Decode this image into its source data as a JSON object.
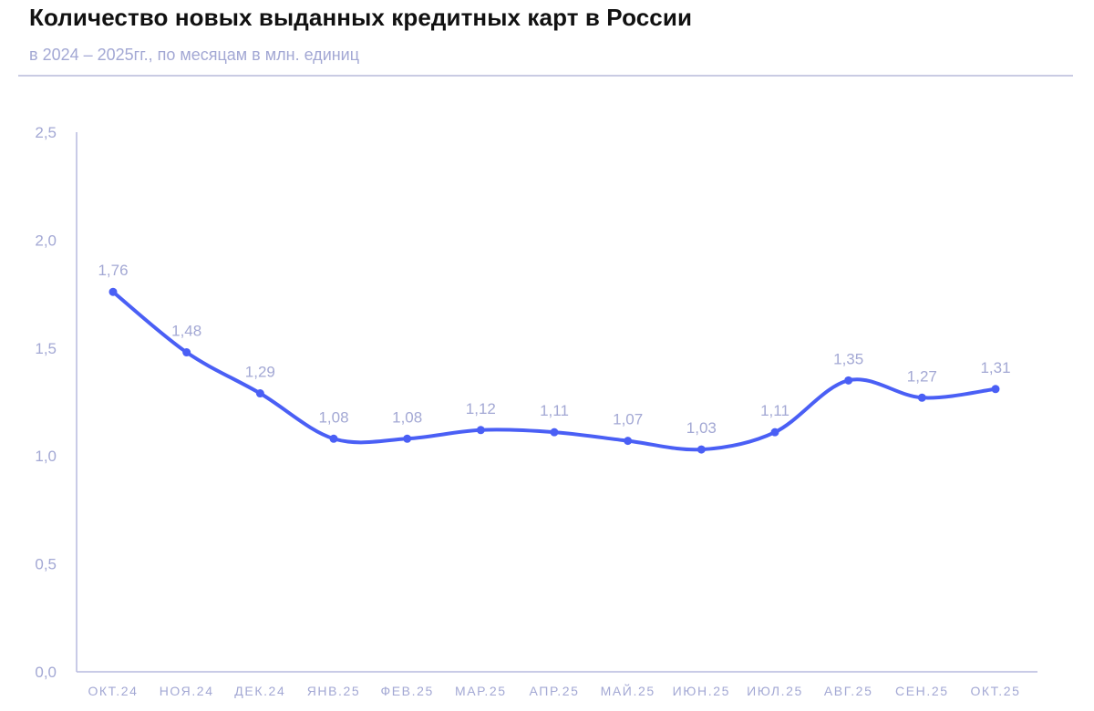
{
  "header": {
    "title": "Количество новых выданных кредитных карт в России",
    "subtitle": "в 2024 – 2025гг., по месяцам в млн. единиц"
  },
  "colors": {
    "line": "#4a5ff5",
    "axis": "#b7badf",
    "text_muted": "#a3a8d4",
    "divider": "#c9cbe3",
    "title": "#111111"
  },
  "chart_data": {
    "type": "line",
    "title": "Количество новых выданных кредитных карт в России",
    "subtitle": "в 2024 – 2025гг., по месяцам в млн. единиц",
    "xlabel": "",
    "ylabel": "",
    "ylim": [
      0,
      2.5
    ],
    "yticks": [
      "0,0",
      "0,5",
      "1,0",
      "1,5",
      "2,0",
      "2,5"
    ],
    "ytick_values": [
      0,
      0.5,
      1.0,
      1.5,
      2.0,
      2.5
    ],
    "grid": false,
    "legend": null,
    "smooth": true,
    "categories": [
      "ОКТ.24",
      "НОЯ.24",
      "ДЕК.24",
      "ЯНВ.25",
      "ФЕВ.25",
      "МАР.25",
      "АПР.25",
      "МАЙ.25",
      "ИЮН.25",
      "ИЮЛ.25",
      "АВГ.25",
      "СЕН.25",
      "ОКТ.25"
    ],
    "values": [
      1.76,
      1.48,
      1.29,
      1.08,
      1.08,
      1.12,
      1.11,
      1.07,
      1.03,
      1.11,
      1.35,
      1.27,
      1.31
    ],
    "data_labels": [
      "1,76",
      "1,48",
      "1,29",
      "1,08",
      "1,08",
      "1,12",
      "1,11",
      "1,07",
      "1,03",
      "1,11",
      "1,35",
      "1,27",
      "1,31"
    ]
  }
}
